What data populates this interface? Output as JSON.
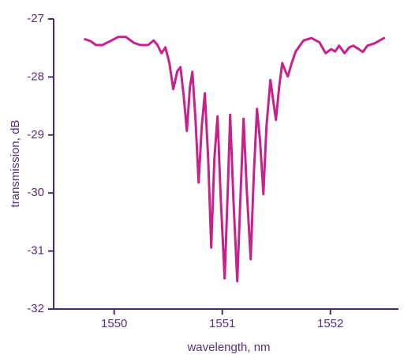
{
  "chart_data": {
    "type": "line",
    "x_label": "wavelength, nm",
    "y_label": "transmission, dB",
    "xlim": [
      1549.44,
      1552.63
    ],
    "xticks": [
      1550,
      1551,
      1552
    ],
    "ylim": [
      -32,
      -27
    ],
    "yticks": [
      -32,
      -31,
      -30,
      -29,
      -28,
      -27
    ],
    "x": [
      1549.73,
      1549.781,
      1549.832,
      1549.891,
      1549.964,
      1550.036,
      1550.109,
      1550.182,
      1550.241,
      1550.314,
      1550.365,
      1550.401,
      1550.438,
      1550.474,
      1550.511,
      1550.547,
      1550.584,
      1550.613,
      1550.642,
      1550.672,
      1550.701,
      1550.723,
      1550.752,
      1550.781,
      1550.81,
      1550.839,
      1550.869,
      1550.898,
      1550.927,
      1550.956,
      1550.985,
      1551.022,
      1551.051,
      1551.073,
      1551.102,
      1551.139,
      1551.168,
      1551.197,
      1551.226,
      1551.263,
      1551.292,
      1551.321,
      1551.35,
      1551.38,
      1551.409,
      1551.445,
      1551.474,
      1551.496,
      1551.526,
      1551.555,
      1551.584,
      1551.606,
      1551.642,
      1551.679,
      1551.752,
      1551.825,
      1551.898,
      1551.956,
      1552.007,
      1552.044,
      1552.08,
      1552.131,
      1552.175,
      1552.212,
      1552.263,
      1552.299,
      1552.343,
      1552.409,
      1552.496
    ],
    "series": [
      {
        "color": "#c8218e",
        "values": [
          -27.35,
          -27.38,
          -27.45,
          -27.45,
          -27.38,
          -27.31,
          -27.31,
          -27.41,
          -27.45,
          -27.45,
          -27.37,
          -27.45,
          -27.59,
          -27.49,
          -27.76,
          -28.21,
          -27.9,
          -27.83,
          -28.31,
          -28.93,
          -28.17,
          -27.91,
          -28.72,
          -29.82,
          -28.85,
          -28.28,
          -29.4,
          -30.94,
          -29.4,
          -28.68,
          -30.08,
          -31.47,
          -29.94,
          -28.65,
          -30.08,
          -31.52,
          -30.08,
          -28.72,
          -29.94,
          -31.14,
          -29.67,
          -28.55,
          -29.13,
          -30.02,
          -28.85,
          -28.05,
          -28.44,
          -28.74,
          -28.17,
          -27.76,
          -27.9,
          -27.99,
          -27.76,
          -27.56,
          -27.37,
          -27.33,
          -27.4,
          -27.59,
          -27.52,
          -27.56,
          -27.46,
          -27.59,
          -27.49,
          -27.46,
          -27.52,
          -27.57,
          -27.46,
          -27.42,
          -27.33
        ]
      }
    ]
  }
}
